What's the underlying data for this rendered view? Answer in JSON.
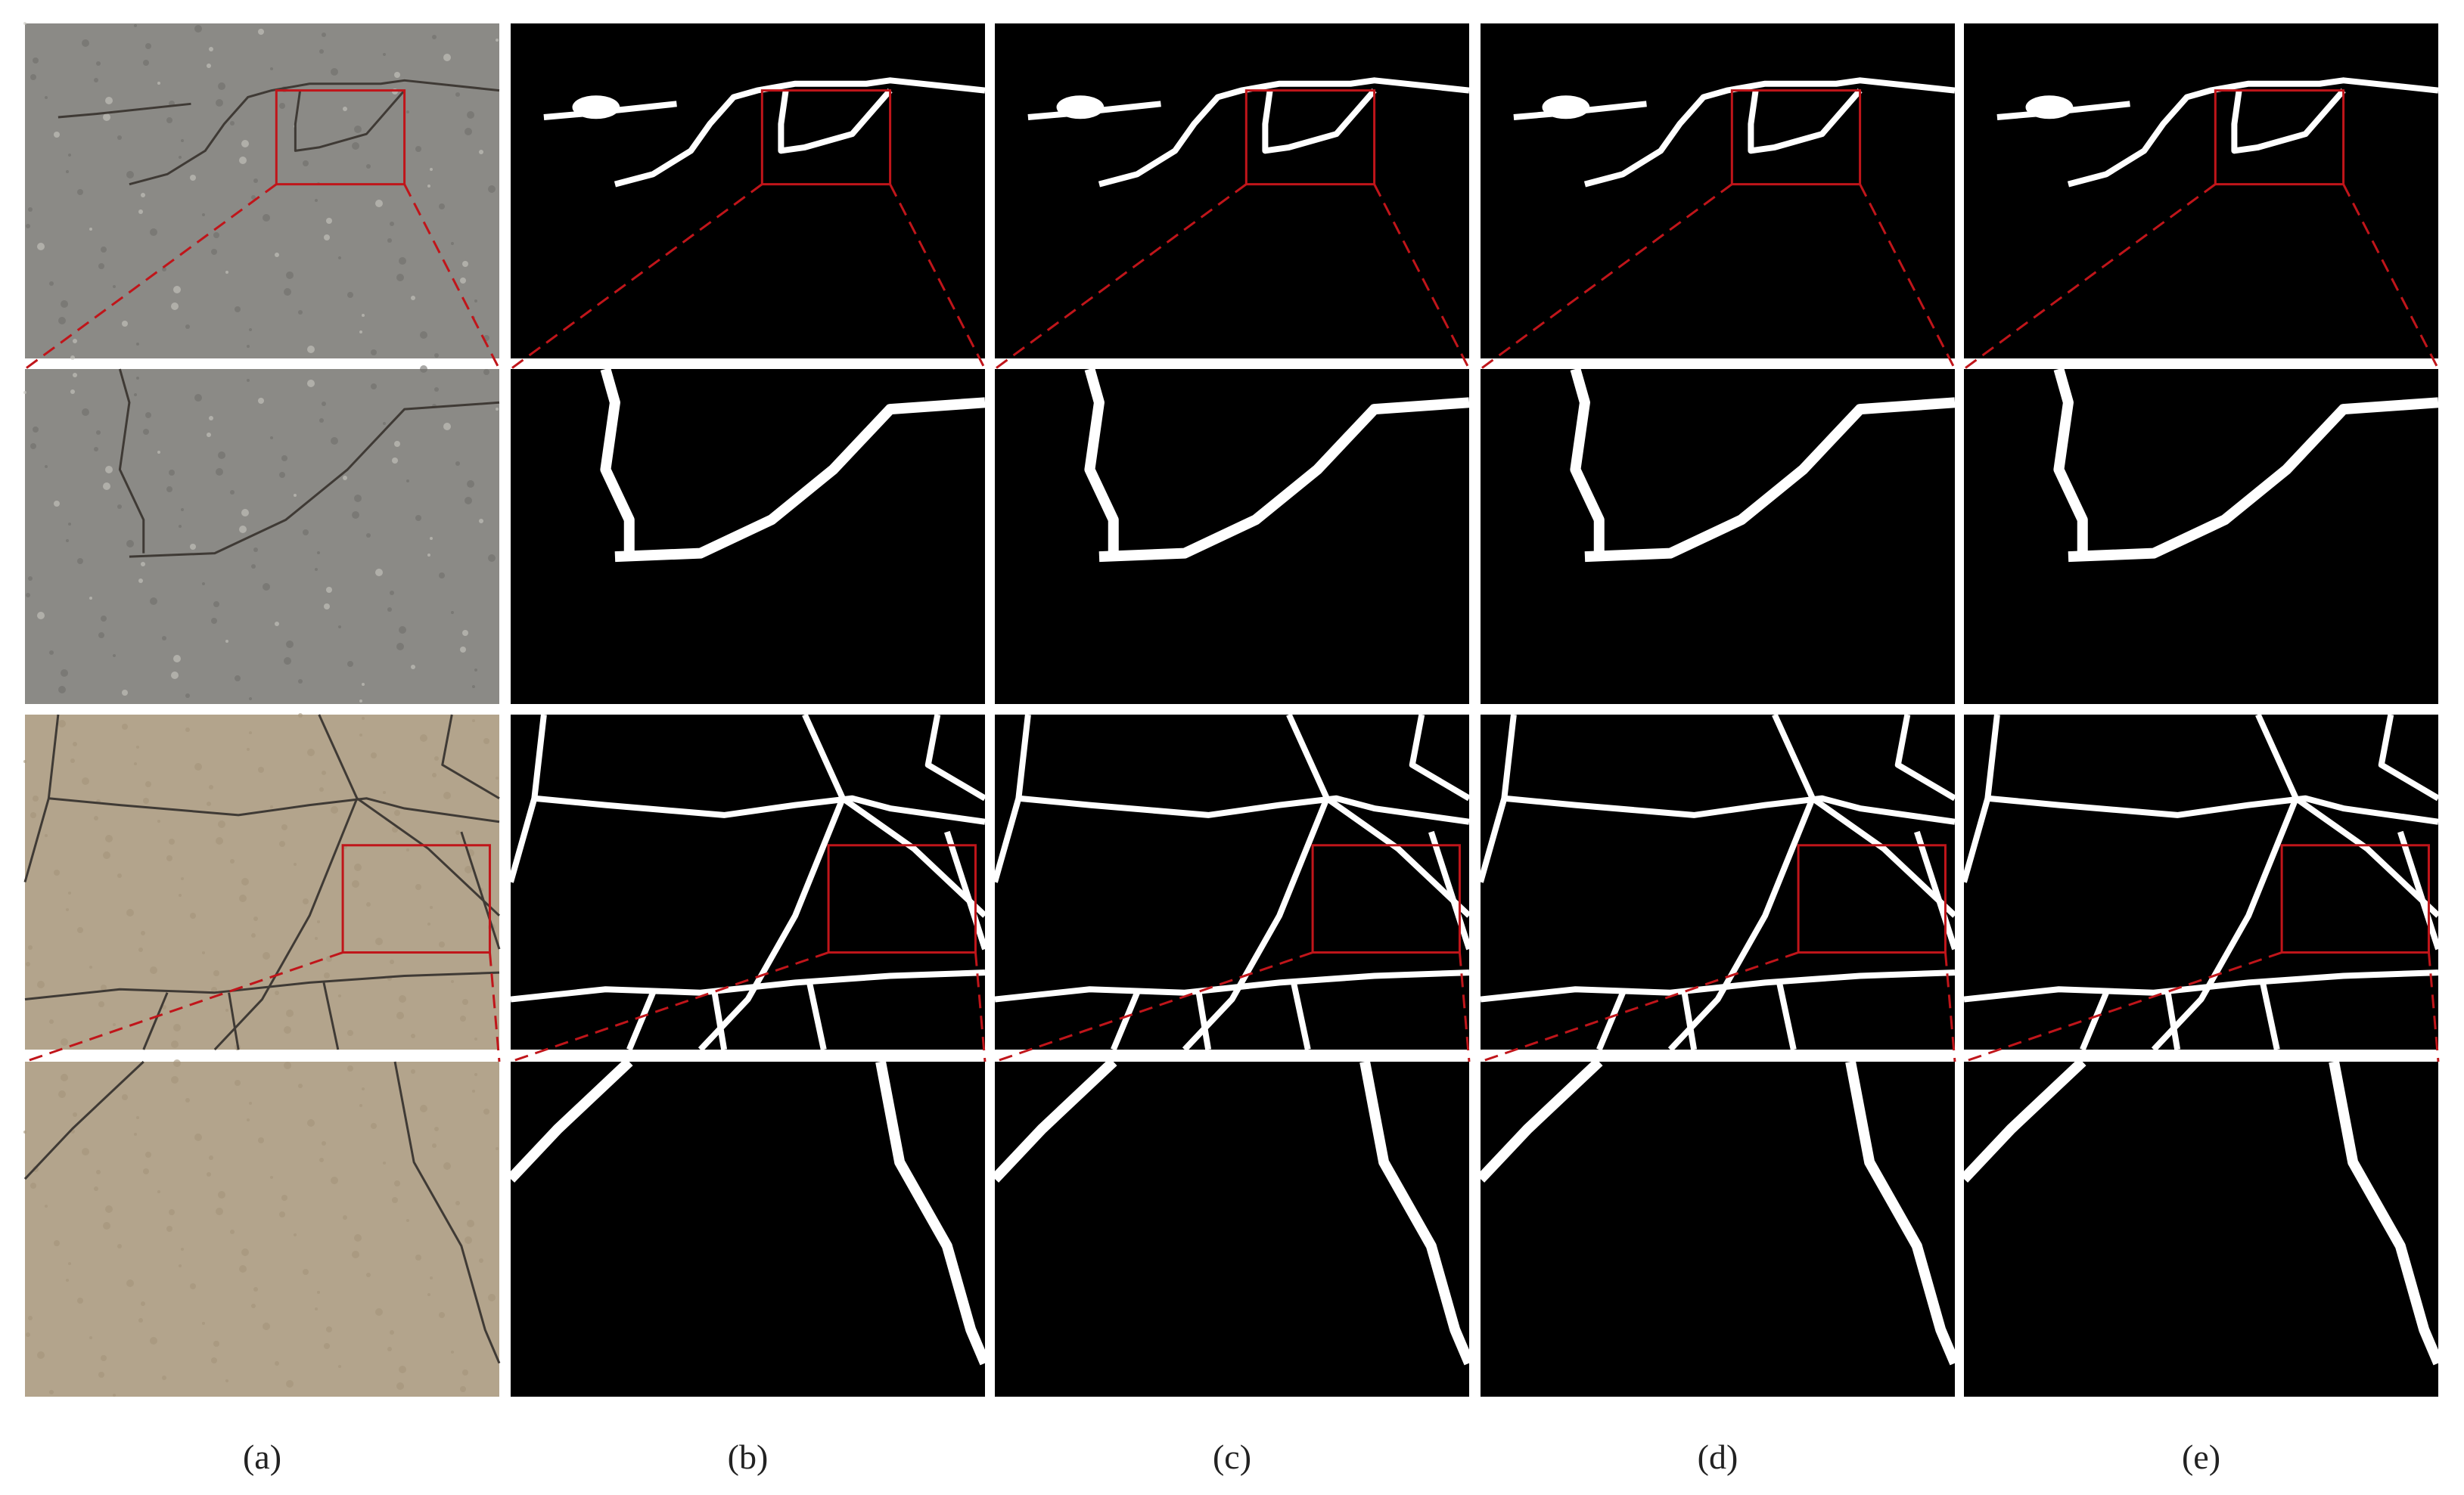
{
  "columns": [
    {
      "label": "(a)"
    },
    {
      "label": "(b)"
    },
    {
      "label": "(c)"
    },
    {
      "label": "(d)"
    },
    {
      "label": "(e)"
    }
  ]
}
